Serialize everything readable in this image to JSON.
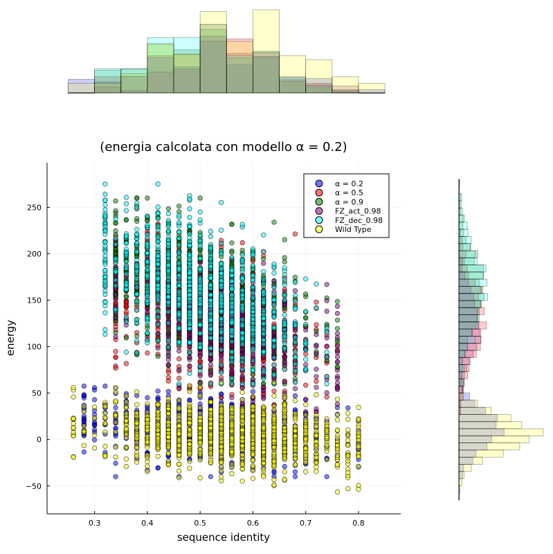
{
  "chart_data": {
    "type": "scatter",
    "title": "(energia calcolata con modello α = 0.2)",
    "xlabel": "sequence identity",
    "ylabel": "energy",
    "xlim": [
      0.21,
      0.88
    ],
    "ylim": [
      -80,
      298
    ],
    "xticks": [
      0.3,
      0.4,
      0.5,
      0.6,
      0.7,
      0.8
    ],
    "xtick_labels": [
      "0.3",
      "0.4",
      "0.5",
      "0.6",
      "0.7",
      "0.8"
    ],
    "yticks": [
      -50,
      0,
      50,
      100,
      150,
      200,
      250
    ],
    "ytick_labels": [
      "−50",
      "0",
      "50",
      "100",
      "150",
      "200",
      "250"
    ],
    "grid": true,
    "legend_position": "top-right",
    "marginal_histograms": [
      "top",
      "right"
    ],
    "series": [
      {
        "name": "α = 0.2",
        "color": "#0000ff",
        "x_center": 0.52,
        "x_sd": 0.12,
        "x_range": [
          0.28,
          0.8
        ],
        "y_center": 10,
        "y_sd": 20,
        "y_range": [
          -40,
          95
        ],
        "slope": -60,
        "count": 700
      },
      {
        "name": "α = 0.5",
        "color": "#ff0000",
        "x_center": 0.52,
        "x_sd": 0.1,
        "x_range": [
          0.33,
          0.76
        ],
        "y_center": 130,
        "y_sd": 35,
        "y_range": [
          30,
          240
        ],
        "slope": -180,
        "count": 800
      },
      {
        "name": "α = 0.9",
        "color": "#008000",
        "x_center": 0.5,
        "x_sd": 0.1,
        "x_range": [
          0.33,
          0.75
        ],
        "y_center": 160,
        "y_sd": 35,
        "y_range": [
          60,
          260
        ],
        "slope": -200,
        "count": 800
      },
      {
        "name": "FZ_act_0.98",
        "color": "#800080",
        "x_center": 0.55,
        "x_sd": 0.1,
        "x_range": [
          0.34,
          0.76
        ],
        "y_center": 120,
        "y_sd": 30,
        "y_range": [
          30,
          230
        ],
        "slope": -200,
        "count": 600
      },
      {
        "name": "FZ_dec_0.98",
        "color": "#00ffff",
        "x_center": 0.5,
        "x_sd": 0.1,
        "x_range": [
          0.31,
          0.74
        ],
        "y_center": 160,
        "y_sd": 35,
        "y_range": [
          60,
          275
        ],
        "slope": -220,
        "count": 900
      },
      {
        "name": "Wild Type",
        "color": "#ffff00",
        "x_center": 0.56,
        "x_sd": 0.12,
        "x_range": [
          0.26,
          0.8
        ],
        "y_center": 5,
        "y_sd": 18,
        "y_range": [
          -62,
          100
        ],
        "slope": -40,
        "count": 1200
      }
    ]
  }
}
